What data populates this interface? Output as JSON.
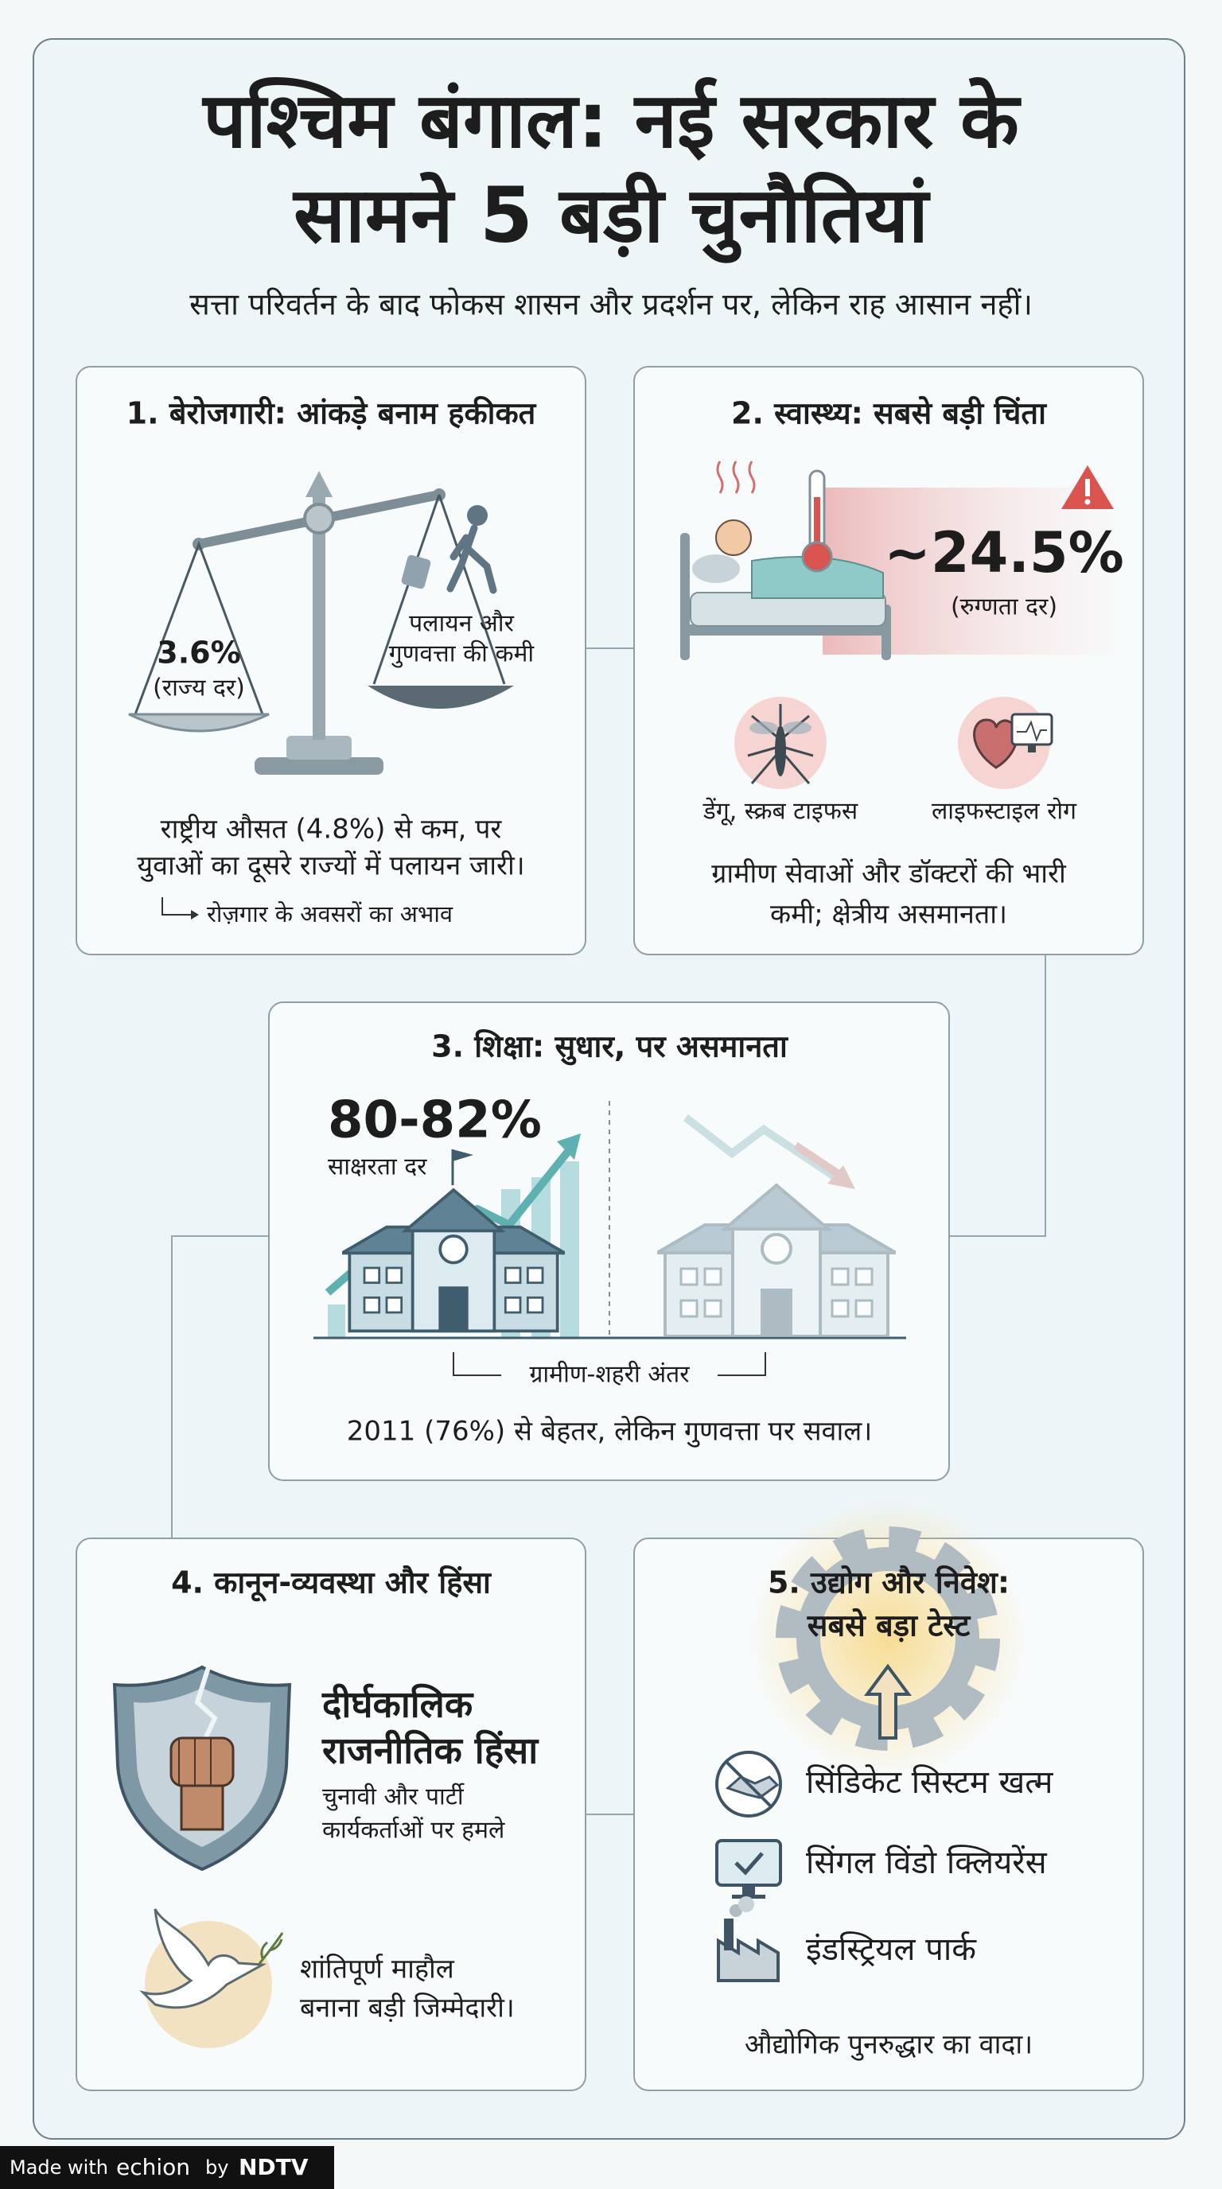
{
  "header": {
    "title_lines": [
      "पश्चिम बंगाल: नई सरकार के",
      "सामने 5 बड़ी चुनौतियां"
    ],
    "subtitle": "सत्ता परिवर्तन के बाद फोकस शासन और प्रदर्शन पर, लेकिन राह आसान नहीं।"
  },
  "cards": [
    {
      "title": "1. बेरोजगारी: आंकड़े बनाम हकीकत",
      "stat": "3.6%",
      "stat_label": "(राज्य दर)",
      "side_label_lines": [
        "पलायन और",
        "गुणवत्ता की कमी"
      ],
      "text_lines": [
        "राष्ट्रीय औसत (4.8%) से कम, पर",
        "युवाओं का दूसरे राज्यों में पलायन जारी।"
      ],
      "note": "रोज़गार के अवसरों का अभाव"
    },
    {
      "title": "2. स्वास्थ्य: सबसे बड़ी चिंता",
      "stat": "~24.5%",
      "stat_label": "(रुग्णता दर)",
      "icons": [
        {
          "label": "डेंगू, स्क्रब टाइफस"
        },
        {
          "label": "लाइफस्टाइल रोग"
        }
      ],
      "text_lines": [
        "ग्रामीण सेवाओं और डॉक्टरों की भारी",
        "कमी; क्षेत्रीय असमानता।"
      ]
    },
    {
      "title": "3. शिक्षा: सुधार, पर असमानता",
      "stat": "80-82%",
      "stat_label": "साक्षरता दर",
      "divider_label": "ग्रामीण-शहरी अंतर",
      "text": "2011 (76%) से बेहतर, लेकिन गुणवत्ता पर सवाल।"
    },
    {
      "title": "4. कानून-व्यवस्था और हिंसा",
      "headline_lines": [
        "दीर्घकालिक",
        "राजनीतिक हिंसा"
      ],
      "detail_lines": [
        "चुनावी और पार्टी",
        "कार्यकर्ताओं पर हमले"
      ],
      "goal_lines": [
        "शांतिपूर्ण माहौल",
        "बनाना बड़ी जिम्मेदारी।"
      ]
    },
    {
      "title_lines": [
        "5. उद्योग और निवेश:",
        "सबसे बड़ा टेस्ट"
      ],
      "items": [
        "सिंडिकेट सिस्टम खत्म",
        "सिंगल विंडो क्लियरेंस",
        "इंडस्ट्रियल पार्क"
      ],
      "text": "औद्योगिक पुनरुद्धार का वादा।"
    }
  ],
  "footer": {
    "made_with": "Made with",
    "brand": "echion",
    "by": "by",
    "partner": "NDTV"
  }
}
